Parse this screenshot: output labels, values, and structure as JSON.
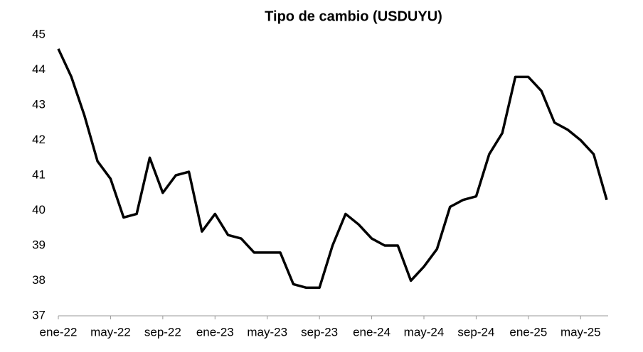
{
  "chart_data": {
    "type": "line",
    "title": "Tipo de cambio (USDUYU)",
    "categories": [
      "ene-22",
      null,
      null,
      null,
      "may-22",
      null,
      null,
      null,
      "sep-22",
      null,
      null,
      null,
      "ene-23",
      null,
      null,
      null,
      "may-23",
      null,
      null,
      null,
      "sep-23",
      null,
      null,
      null,
      "ene-24",
      null,
      null,
      null,
      "may-24",
      null,
      null,
      null,
      "sep-24",
      null,
      null,
      null,
      "ene-25",
      null,
      null,
      null,
      "may-25",
      null,
      null
    ],
    "series": [
      {
        "name": "USDUYU",
        "color": "#000000",
        "values": [
          44.6,
          43.8,
          42.7,
          41.4,
          40.9,
          39.8,
          39.9,
          41.5,
          40.5,
          41.0,
          41.1,
          39.4,
          39.9,
          39.3,
          39.2,
          38.8,
          38.8,
          38.8,
          37.9,
          37.8,
          37.8,
          39.0,
          39.9,
          39.6,
          39.2,
          39.0,
          39.0,
          38.0,
          38.4,
          38.9,
          40.1,
          40.3,
          40.4,
          41.6,
          42.2,
          43.8,
          43.8,
          43.4,
          42.5,
          42.3,
          42.0,
          41.6,
          40.3
        ]
      }
    ],
    "ylim": [
      37,
      45
    ],
    "yticks": [
      37,
      38,
      39,
      40,
      41,
      42,
      43,
      44,
      45
    ],
    "grid": false
  }
}
